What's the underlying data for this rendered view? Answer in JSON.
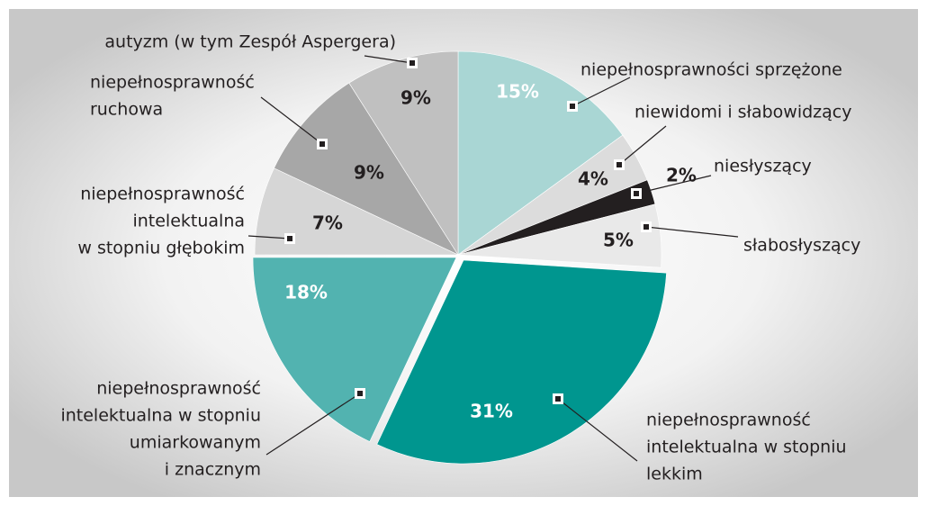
{
  "chart_data": {
    "type": "pie",
    "categories": [
      [
        "niepełnosprawności sprzężone"
      ],
      [
        "niewidomi i słabowidzący"
      ],
      [
        "niesłyszący"
      ],
      [
        "słabosłyszący"
      ],
      [
        "niepełnosprawność",
        "intelektualna w stopniu",
        "lekkim"
      ],
      [
        "niepełnosprawność",
        "intelektualna w stopniu",
        "umiarkowanym",
        "i znacznym"
      ],
      [
        "niepełnosprawność",
        "intelektualna",
        "w stopniu głębokim"
      ],
      [
        "niepełnosprawność",
        "ruchowa"
      ],
      [
        "autyzm (w tym Zespół Aspergera)"
      ]
    ],
    "values": [
      15,
      4,
      2,
      5,
      31,
      18,
      7,
      9,
      9
    ],
    "value_labels": [
      "15%",
      "4%",
      "2%",
      "5%",
      "31%",
      "18%",
      "7%",
      "9%",
      "9%"
    ],
    "colors": [
      "#a9d6d4",
      "#dcdcdc",
      "#231f20",
      "#e9e9e9",
      "#00968f",
      "#52b3b0",
      "#d6d6d6",
      "#a7a7a7",
      "#c0c0c0"
    ]
  }
}
